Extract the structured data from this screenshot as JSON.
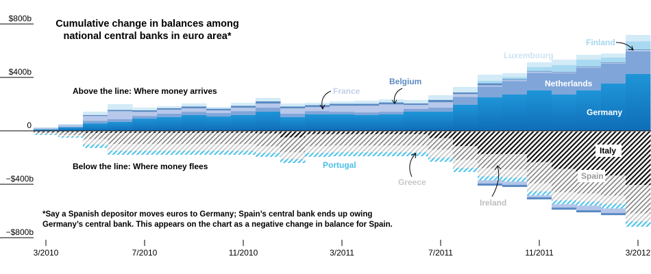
{
  "chart_data": {
    "type": "area",
    "style": "stacked-step",
    "title": "Cumulative change in balances among national central banks in euro area*",
    "title_lines": [
      "Cumulative change in balances among",
      "national central banks in euro area*"
    ],
    "xlabel": "",
    "ylabel": "",
    "ylim": [
      -800,
      800
    ],
    "unit": "billions of dollars",
    "y_ticks": [
      {
        "value": 800,
        "label": "$800b"
      },
      {
        "value": 400,
        "label": "$400b"
      },
      {
        "value": 0,
        "label": "0"
      },
      {
        "value": -400,
        "label": "−$400b"
      },
      {
        "value": -800,
        "label": "−$800b"
      }
    ],
    "x_ticks": [
      "3/2010",
      "7/2010",
      "11/2010",
      "3/2011",
      "7/2011",
      "11/2011",
      "3/2012"
    ],
    "months": 25,
    "positive_series": [
      {
        "name": "Germany",
        "color": "#1a7fc8",
        "values": [
          10,
          26,
          56,
          67,
          92,
          103,
          118,
          108,
          118,
          144,
          103,
          123,
          123,
          118,
          123,
          144,
          144,
          195,
          251,
          272,
          303,
          272,
          303,
          354,
          426
        ]
      },
      {
        "name": "Netherlands",
        "color": "#7fa5d9",
        "values": [
          4,
          6,
          20,
          20,
          20,
          25,
          25,
          25,
          30,
          30,
          25,
          25,
          20,
          20,
          20,
          20,
          30,
          60,
          80,
          100,
          130,
          160,
          170,
          150,
          170
        ]
      },
      {
        "name": "France",
        "color": "#b8c8ea",
        "values": [
          6,
          8,
          35,
          60,
          30,
          30,
          25,
          20,
          25,
          30,
          40,
          30,
          45,
          50,
          55,
          30,
          40,
          20,
          10,
          10,
          10,
          5,
          5,
          5,
          10
        ]
      },
      {
        "name": "Belgium",
        "color": "#5b8bc3",
        "values": [
          2,
          3,
          8,
          10,
          12,
          12,
          15,
          13,
          15,
          17,
          15,
          15,
          15,
          15,
          15,
          12,
          18,
          13,
          15,
          5,
          5,
          5,
          5,
          5,
          5
        ]
      },
      {
        "name": "Finland",
        "color": "#a8d9f1",
        "values": [
          0,
          0,
          0,
          0,
          0,
          0,
          0,
          0,
          0,
          0,
          0,
          0,
          0,
          0,
          0,
          0,
          0,
          0,
          20,
          15,
          30,
          50,
          50,
          35,
          60
        ]
      },
      {
        "name": "Luxembourg",
        "color": "#d3ebf7",
        "values": [
          4,
          8,
          25,
          43,
          20,
          15,
          22,
          13,
          22,
          25,
          22,
          17,
          18,
          23,
          23,
          25,
          35,
          40,
          45,
          29,
          35,
          41,
          36,
          30,
          47
        ]
      }
    ],
    "negative_series": [
      {
        "name": "Italy",
        "color": "#111111",
        "values": [
          -5,
          -5,
          -10,
          -10,
          -10,
          -10,
          -10,
          -10,
          -10,
          -15,
          -45,
          -20,
          -20,
          -20,
          -20,
          -20,
          -50,
          -110,
          -170,
          -170,
          -230,
          -280,
          -300,
          -330,
          -400
        ]
      },
      {
        "name": "Spain",
        "color": "#8a8a8a",
        "values": [
          -8,
          -21,
          -48,
          -84,
          -84,
          -84,
          -84,
          -84,
          -84,
          -95,
          -111,
          -90,
          -85,
          -85,
          -85,
          -85,
          -86,
          -103,
          -105,
          -115,
          -158,
          -175,
          -165,
          -151,
          -213
        ]
      },
      {
        "name": "Greece",
        "color": "#c4c4c4",
        "values": [
          -5,
          -10,
          -40,
          -50,
          -50,
          -50,
          -50,
          -50,
          -50,
          -50,
          -50,
          -50,
          -50,
          -50,
          -50,
          -50,
          -60,
          -60,
          -60,
          -60,
          -60,
          -60,
          -60,
          -60,
          -60
        ]
      },
      {
        "name": "Portugal",
        "color": "#4fc3ea",
        "values": [
          -8,
          -10,
          -25,
          -30,
          -30,
          -30,
          -30,
          -30,
          -30,
          -30,
          -30,
          -30,
          -30,
          -30,
          -30,
          -30,
          -30,
          -30,
          -30,
          -30,
          -30,
          -30,
          -30,
          -35,
          -40
        ]
      },
      {
        "name": "Ireland",
        "color": "#b3c5e8",
        "values": [
          0,
          0,
          0,
          0,
          0,
          0,
          0,
          0,
          0,
          0,
          0,
          0,
          0,
          0,
          0,
          0,
          0,
          0,
          -40,
          -40,
          -30,
          -40,
          -50,
          -50,
          0
        ]
      }
    ],
    "annotations": {
      "above": "Above the line: Where money arrives",
      "below": "Below the line: Where money flees",
      "footnote_lines": [
        "*Say a Spanish depositor moves euros to Germany; Spain’s central bank ends up owing",
        "Germany’s central bank. This appears on the chart as a negative change in balance for Spain."
      ]
    },
    "labels": {
      "germany": "Germany",
      "netherlands": "Netherlands",
      "belgium": "Belgium",
      "france": "France",
      "luxembourg": "Luxembourg",
      "finland": "Finland",
      "italy": "Italy",
      "spain": "Spain",
      "greece": "Greece",
      "ireland": "Ireland",
      "portugal": "Portugal"
    },
    "grid": false,
    "legend": "none (direct labels)"
  }
}
